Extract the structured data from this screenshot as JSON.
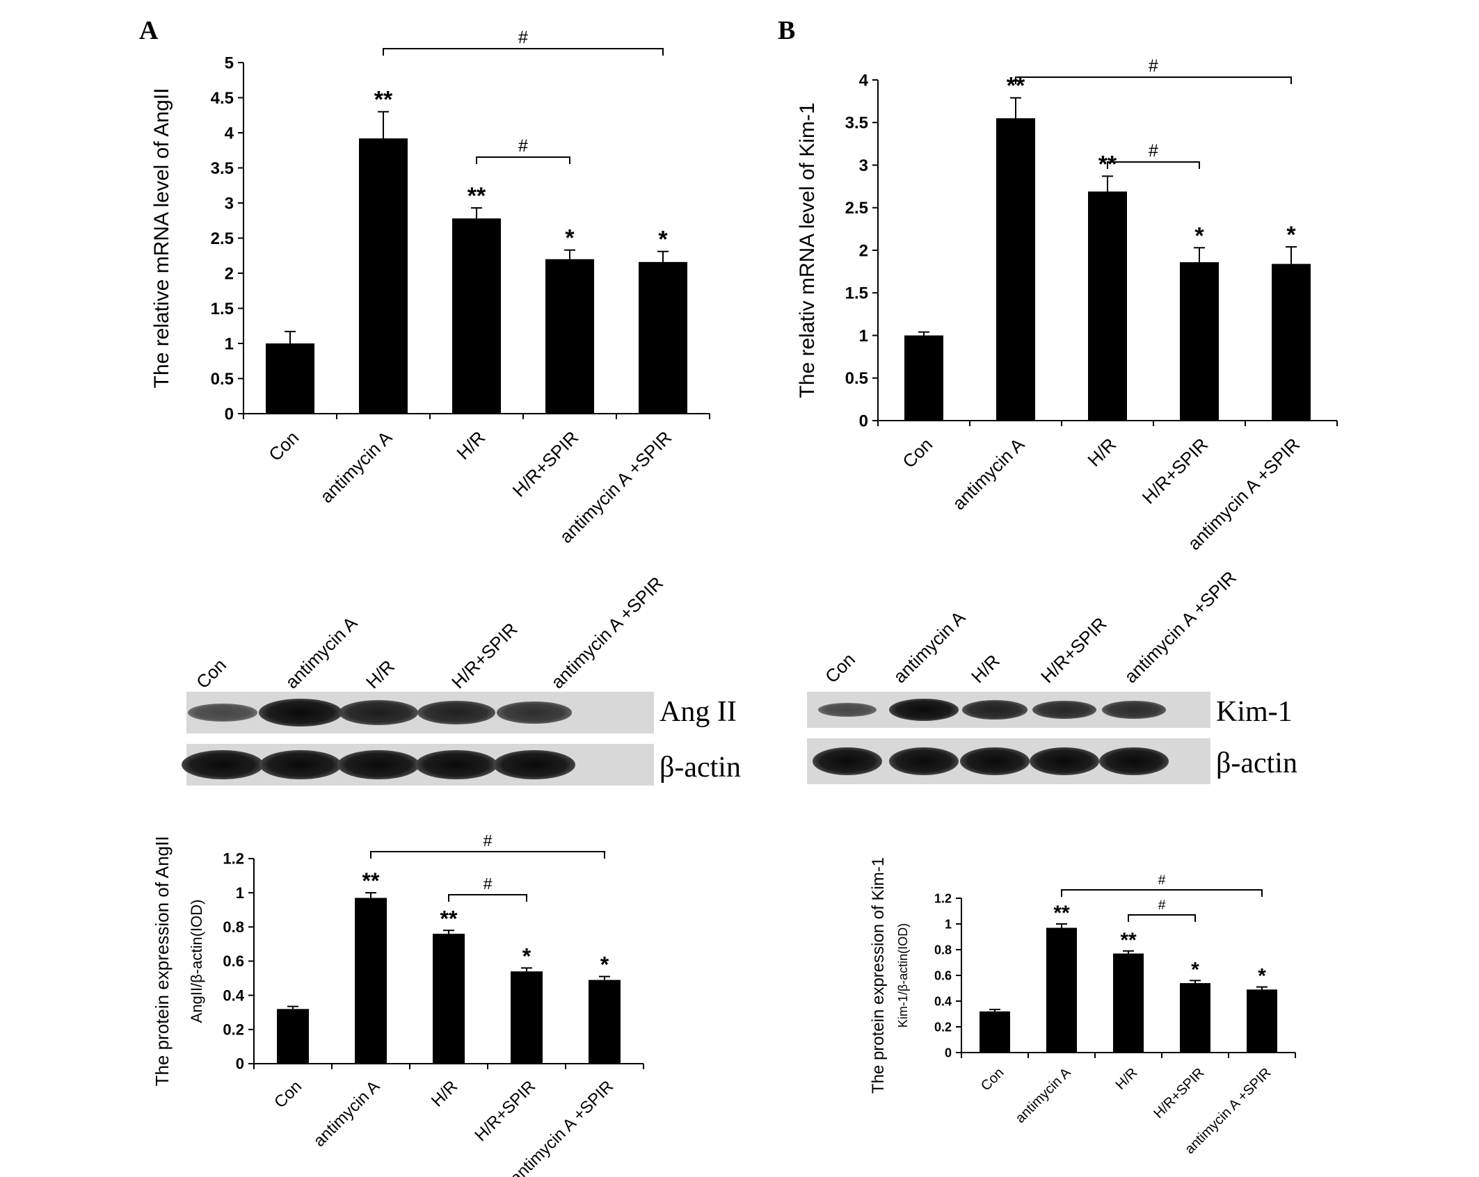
{
  "panels": {
    "a": "A",
    "b": "B"
  },
  "blots": {
    "a": {
      "lanes": [
        "Con",
        "antimycin A",
        "H/R",
        "H/R+SPIR",
        "antimycin A +SPIR"
      ],
      "labels": [
        "Ang II",
        "β-actin"
      ],
      "band_intensity": [
        [
          0.35,
          1.0,
          0.8,
          0.75,
          0.6
        ],
        [
          1.0,
          1.0,
          1.0,
          1.0,
          1.0
        ]
      ]
    },
    "b": {
      "lanes": [
        "Con",
        "antimycin A",
        "H/R",
        "H/R+SPIR",
        "antimycin A +SPIR"
      ],
      "labels": [
        "Kim-1",
        "β-actin"
      ],
      "band_intensity": [
        [
          0.35,
          1.0,
          0.75,
          0.7,
          0.65
        ],
        [
          1.0,
          1.0,
          1.0,
          1.0,
          1.0
        ]
      ]
    }
  },
  "chart_data": [
    {
      "id": "a-mrna",
      "type": "bar",
      "categories": [
        "Con",
        "antimycin A",
        "H/R",
        "H/R+SPIR",
        "antimycin A +SPIR"
      ],
      "values": [
        1.0,
        3.92,
        2.78,
        2.2,
        2.16
      ],
      "errors": [
        0.17,
        0.38,
        0.15,
        0.13,
        0.15
      ],
      "significance": [
        "",
        "**",
        "**",
        "*",
        "*"
      ],
      "brackets": [
        {
          "from": 1,
          "to": 4,
          "label": "#"
        },
        {
          "from": 2,
          "to": 3,
          "label": "#"
        }
      ],
      "ylabel": "The relative mRNA level of AngII",
      "ylabel2": "",
      "ylim": [
        0,
        5
      ],
      "yticks": [
        "0",
        "0.5",
        "1",
        "1.5",
        "2",
        "2.5",
        "3",
        "3.5",
        "4",
        "4.5",
        "5"
      ],
      "grid": false
    },
    {
      "id": "b-mrna",
      "type": "bar",
      "categories": [
        "Con",
        "antimycin A",
        "H/R",
        "H/R+SPIR",
        "antimycin A +SPIR"
      ],
      "values": [
        1.0,
        3.55,
        2.69,
        1.86,
        1.84
      ],
      "errors": [
        0.04,
        0.24,
        0.18,
        0.17,
        0.2
      ],
      "significance": [
        "",
        "**",
        "**",
        "*",
        "*"
      ],
      "brackets": [
        {
          "from": 1,
          "to": 4,
          "label": "#"
        },
        {
          "from": 2,
          "to": 3,
          "label": "#"
        }
      ],
      "ylabel": "The relativ mRNA level of Kim-1",
      "ylabel2": "",
      "ylim": [
        0,
        4
      ],
      "yticks": [
        "0",
        "0.5",
        "1",
        "1.5",
        "2",
        "2.5",
        "3",
        "3.5",
        "4"
      ],
      "grid": false
    },
    {
      "id": "a-protein",
      "type": "bar",
      "categories": [
        "Con",
        "antimycin A",
        "H/R",
        "H/R+SPIR",
        "antimycin A +SPIR"
      ],
      "values": [
        0.32,
        0.97,
        0.76,
        0.54,
        0.49
      ],
      "errors": [
        0.015,
        0.03,
        0.02,
        0.02,
        0.02
      ],
      "significance": [
        "",
        "**",
        "**",
        "*",
        "*"
      ],
      "brackets": [
        {
          "from": 1,
          "to": 4,
          "label": "#"
        },
        {
          "from": 2,
          "to": 3,
          "label": "#"
        }
      ],
      "ylabel": "The protein expression of AngII",
      "ylabel2": "AngII/β-actin(IOD)",
      "ylim": [
        0,
        1.2
      ],
      "yticks": [
        "0",
        "0.2",
        "0.4",
        "0.6",
        "0.8",
        "1",
        "1.2"
      ],
      "grid": false
    },
    {
      "id": "b-protein",
      "type": "bar",
      "categories": [
        "Con",
        "antimycin A",
        "H/R",
        "H/R+SPIR",
        "antimycin A +SPIR"
      ],
      "values": [
        0.32,
        0.97,
        0.77,
        0.54,
        0.49
      ],
      "errors": [
        0.015,
        0.03,
        0.02,
        0.02,
        0.02
      ],
      "significance": [
        "",
        "**",
        "**",
        "*",
        "*"
      ],
      "brackets": [
        {
          "from": 1,
          "to": 4,
          "label": "#"
        },
        {
          "from": 2,
          "to": 3,
          "label": "#"
        }
      ],
      "ylabel": "The protein expression of Kim-1",
      "ylabel2": "Kim-1/β-actin(IOD)",
      "ylim": [
        0,
        1.2
      ],
      "yticks": [
        "0",
        "0.2",
        "0.4",
        "0.6",
        "0.8",
        "1",
        "1.2"
      ],
      "grid": false
    }
  ]
}
